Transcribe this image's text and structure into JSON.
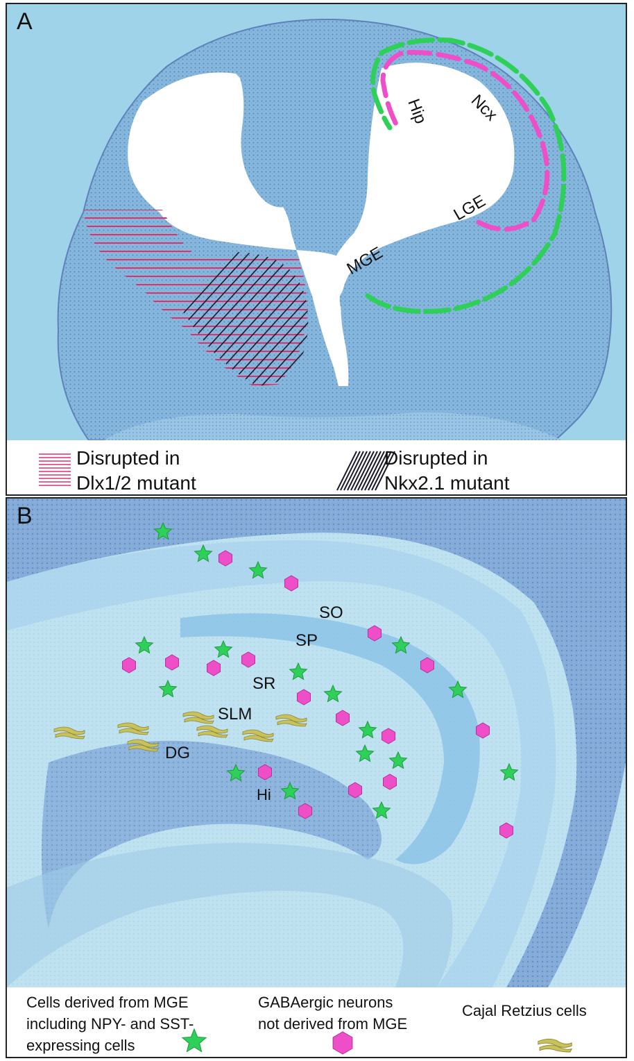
{
  "panel_a": {
    "letter": "A",
    "regions": {
      "hip": "Hip",
      "ncx": "Ncx",
      "lge": "LGE",
      "mge": "MGE"
    },
    "legend": {
      "dlx_line1": "Disrupted in",
      "dlx_line2": "Dlx1/2 mutant",
      "nkx_line1": "Disrupted in",
      "nkx_line2": "Nkx2.1 mutant"
    }
  },
  "panel_b": {
    "letter": "B",
    "layers": {
      "so": "SO",
      "sp": "SP",
      "sr": "SR",
      "slm": "SLM",
      "dg": "DG",
      "hi": "Hi"
    },
    "legend": {
      "mge_line1": "Cells derived from MGE",
      "mge_line2": "including NPY- and SST-",
      "mge_line3": "expressing cells",
      "gaba_line1": "GABAergic neurons",
      "gaba_line2": "not derived from MGE",
      "cajal": "Cajal Retzius cells"
    }
  },
  "colors": {
    "tissue_background": "#9fd3ea",
    "tissue_stain": "#6f93c7",
    "mge_derived_marker": "#2fd05a",
    "gabaergic_marker": "#ee4fc8",
    "cajal_marker": "#c9c25a",
    "dlx_hatch": "#e0306a",
    "nkx_hatch": "#1a1a2a"
  }
}
